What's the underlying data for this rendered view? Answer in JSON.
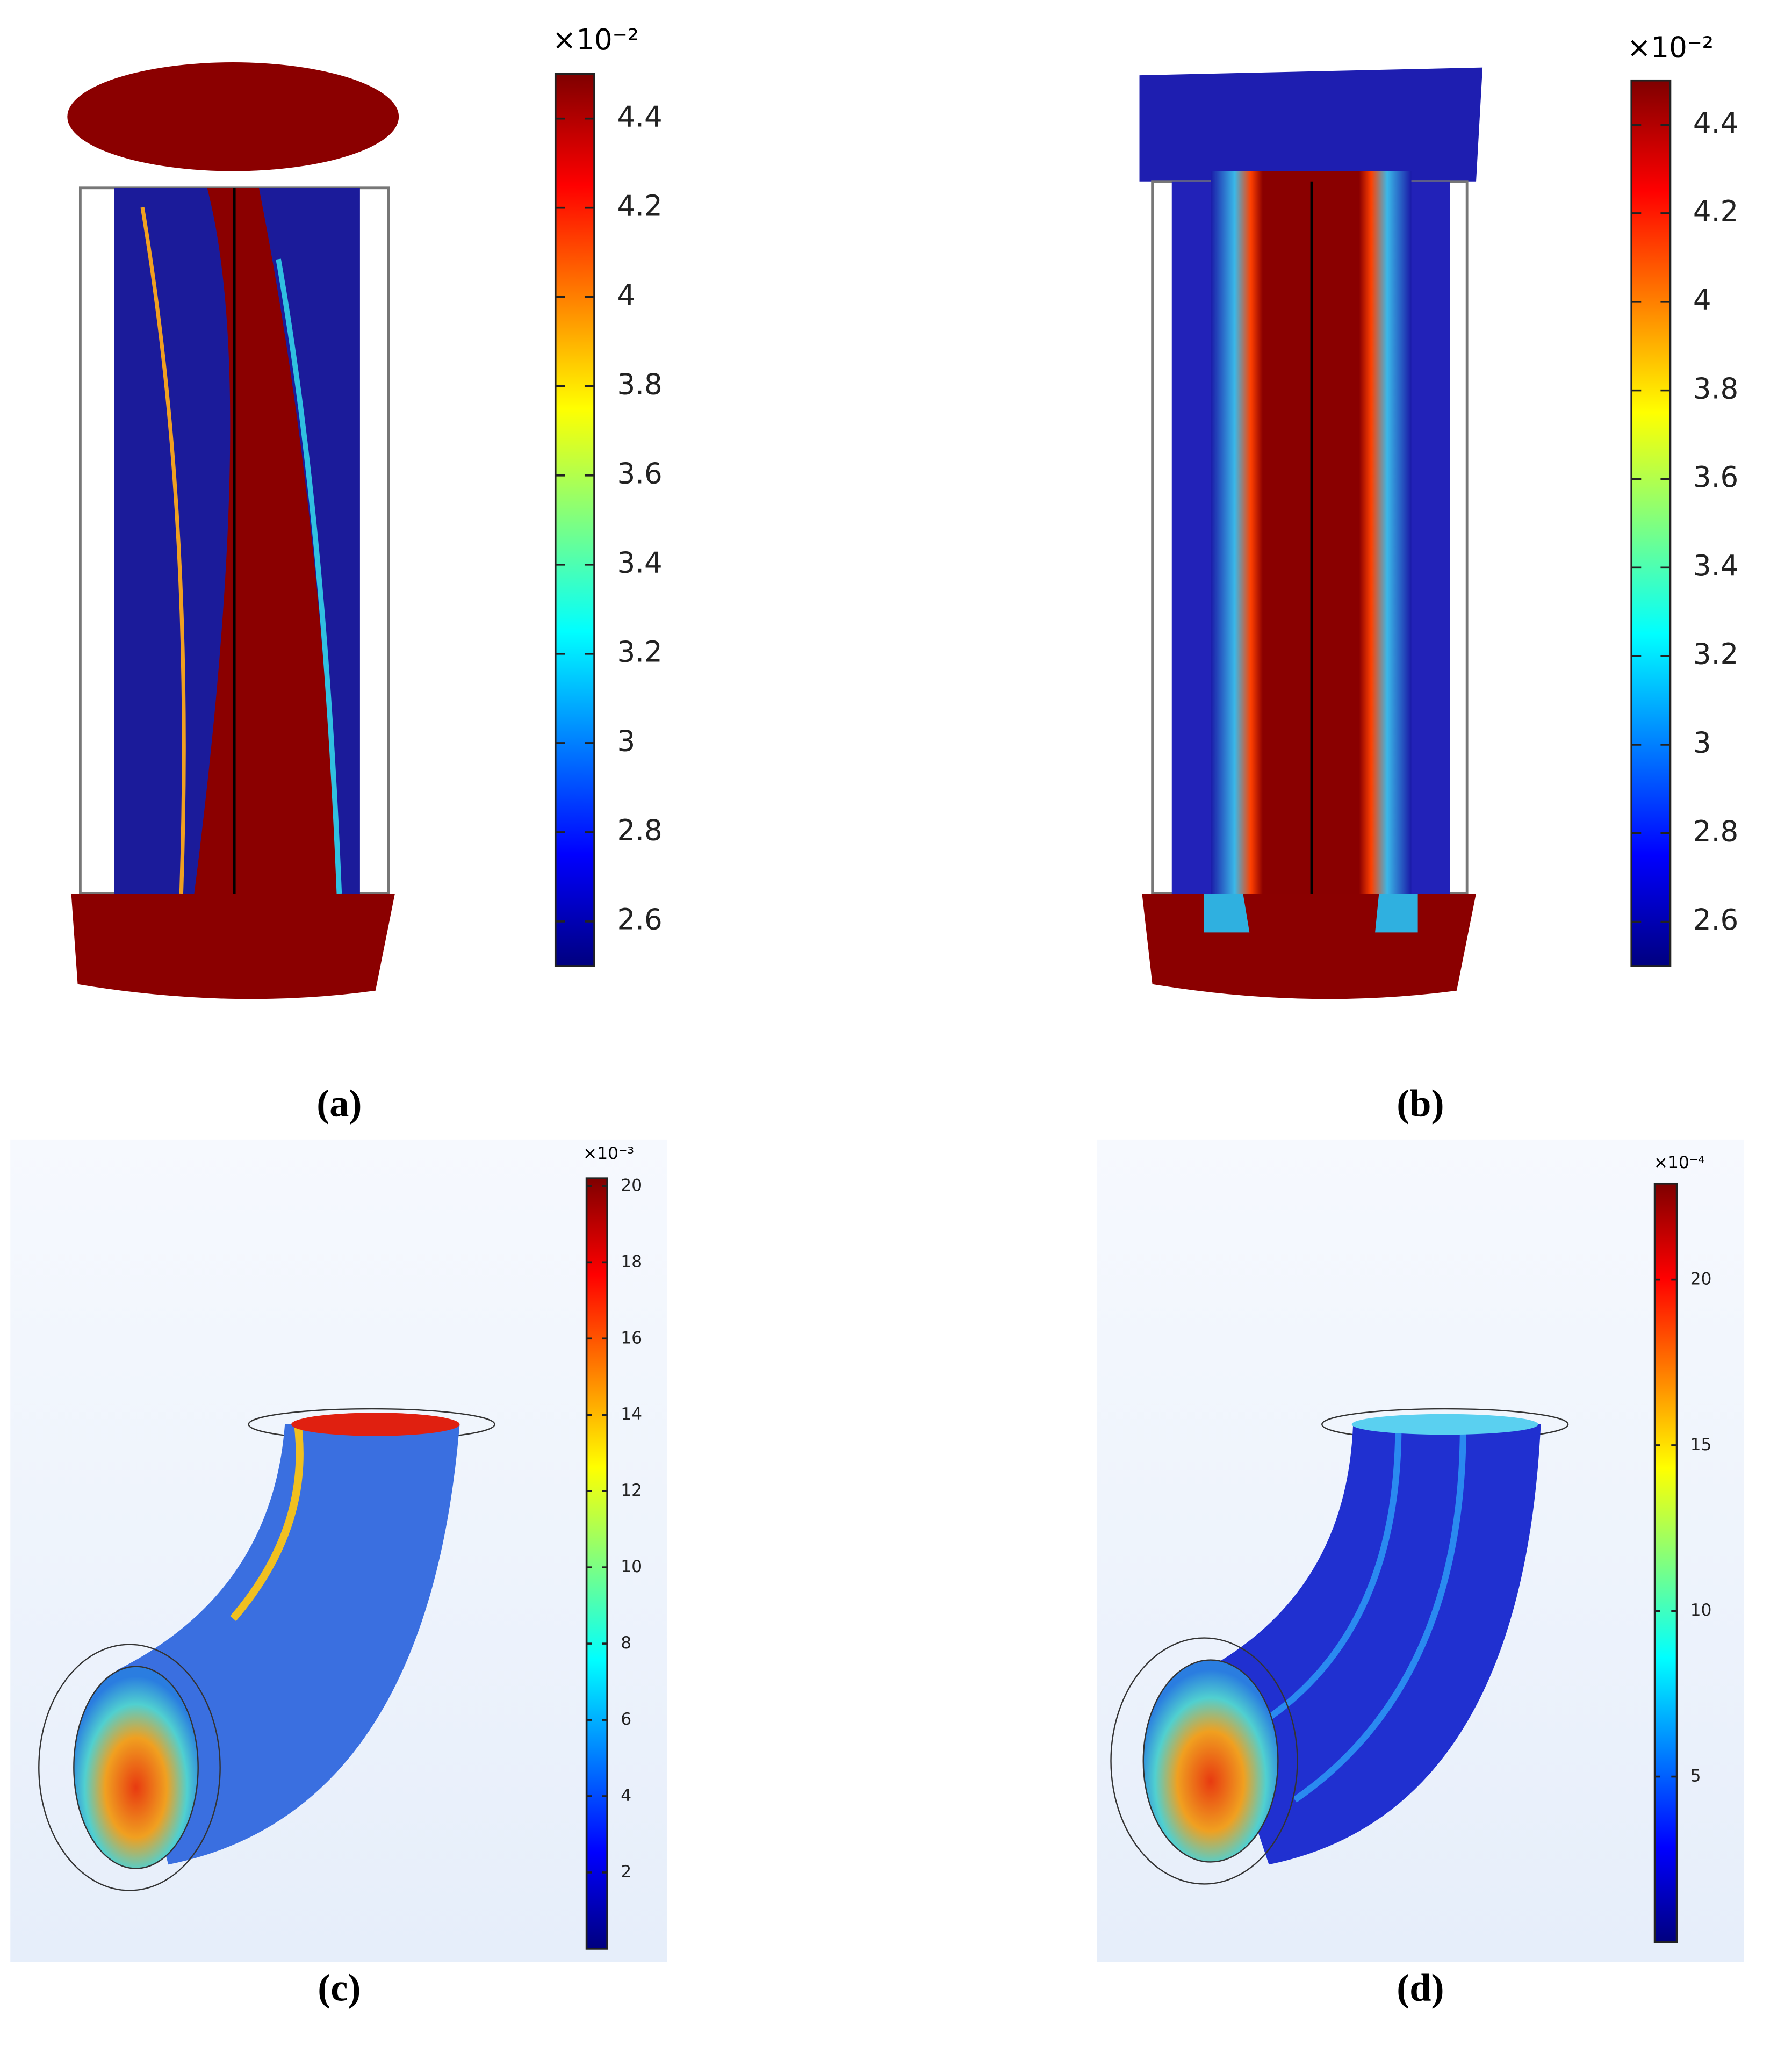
{
  "panels": [
    {
      "label": "(a)",
      "colorbar": {
        "scale": "×10⁻²",
        "clim": [
          2.5,
          4.5
        ],
        "ticks": [
          2.6,
          2.8,
          3,
          3.2,
          3.4,
          3.6,
          3.8,
          4,
          4.2,
          4.4
        ]
      }
    },
    {
      "label": "(b)",
      "colorbar": {
        "scale": "×10⁻²",
        "clim": [
          2.5,
          4.5
        ],
        "ticks": [
          2.6,
          2.8,
          3,
          3.2,
          3.4,
          3.6,
          3.8,
          4,
          4.2,
          4.4
        ]
      }
    },
    {
      "label": "(c)",
      "colorbar": {
        "scale": "×10⁻³",
        "clim": [
          0,
          20.2
        ],
        "ticks": [
          2,
          4,
          6,
          8,
          10,
          12,
          14,
          16,
          18,
          20
        ]
      }
    },
    {
      "label": "(d)",
      "colorbar": {
        "scale": "×10⁻⁴",
        "clim": [
          0,
          22.9
        ],
        "ticks": [
          5,
          10,
          15,
          20
        ]
      }
    }
  ]
}
